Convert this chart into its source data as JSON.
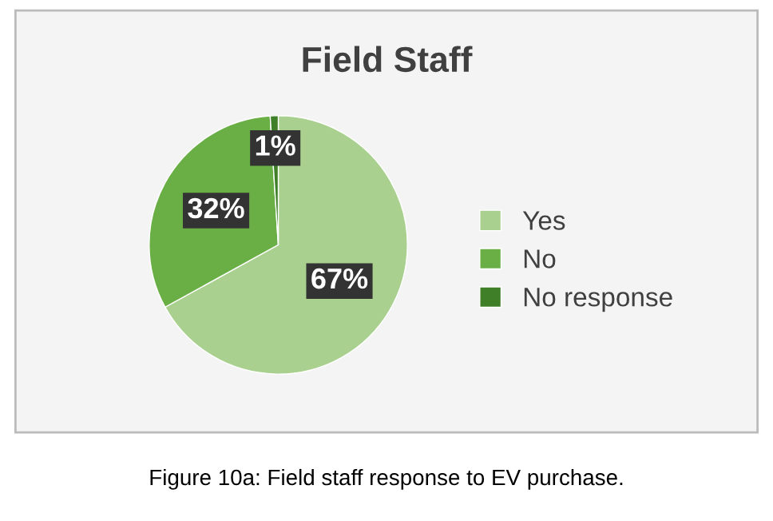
{
  "chart_data": {
    "type": "pie",
    "title": "Field Staff",
    "categories": [
      "Yes",
      "No",
      "No response"
    ],
    "values": [
      67,
      32,
      1
    ],
    "value_labels": [
      "67%",
      "32%",
      "1%"
    ],
    "colors": [
      "#a9d08e",
      "#6aaf45",
      "#3f7f28"
    ],
    "legend": "right",
    "annotations": [
      "Figure 10a: Field staff response to EV purchase."
    ]
  }
}
